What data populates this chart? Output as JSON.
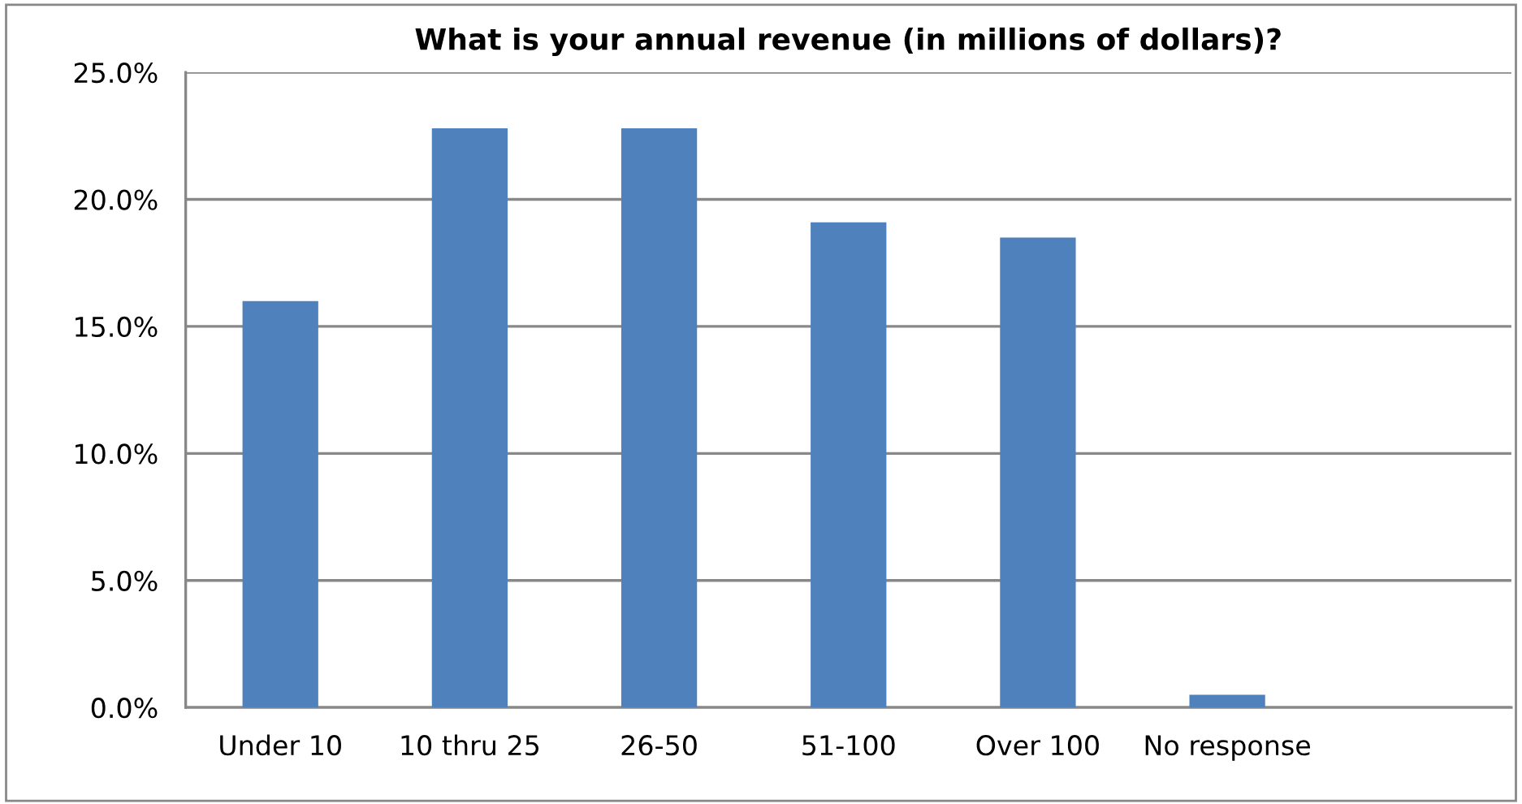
{
  "chart_data": {
    "type": "bar",
    "title": "What is your annual revenue (in millions of dollars)?",
    "categories": [
      "Under 10",
      "10 thru 25",
      "26-50",
      "51-100",
      "Over 100",
      "No response",
      null
    ],
    "values": [
      16.0,
      22.8,
      22.8,
      19.1,
      18.5,
      0.5,
      null
    ],
    "color": "#4f81bd",
    "ylim": [
      0,
      25
    ],
    "yticks": [
      {
        "value": 0,
        "label": "0.0%"
      },
      {
        "value": 5,
        "label": "5.0%"
      },
      {
        "value": 10,
        "label": "10.0%"
      },
      {
        "value": 15,
        "label": "15.0%"
      },
      {
        "value": 20,
        "label": "20.0%"
      },
      {
        "value": 25,
        "label": "25.0%"
      }
    ],
    "grid": "y",
    "legend": false
  }
}
